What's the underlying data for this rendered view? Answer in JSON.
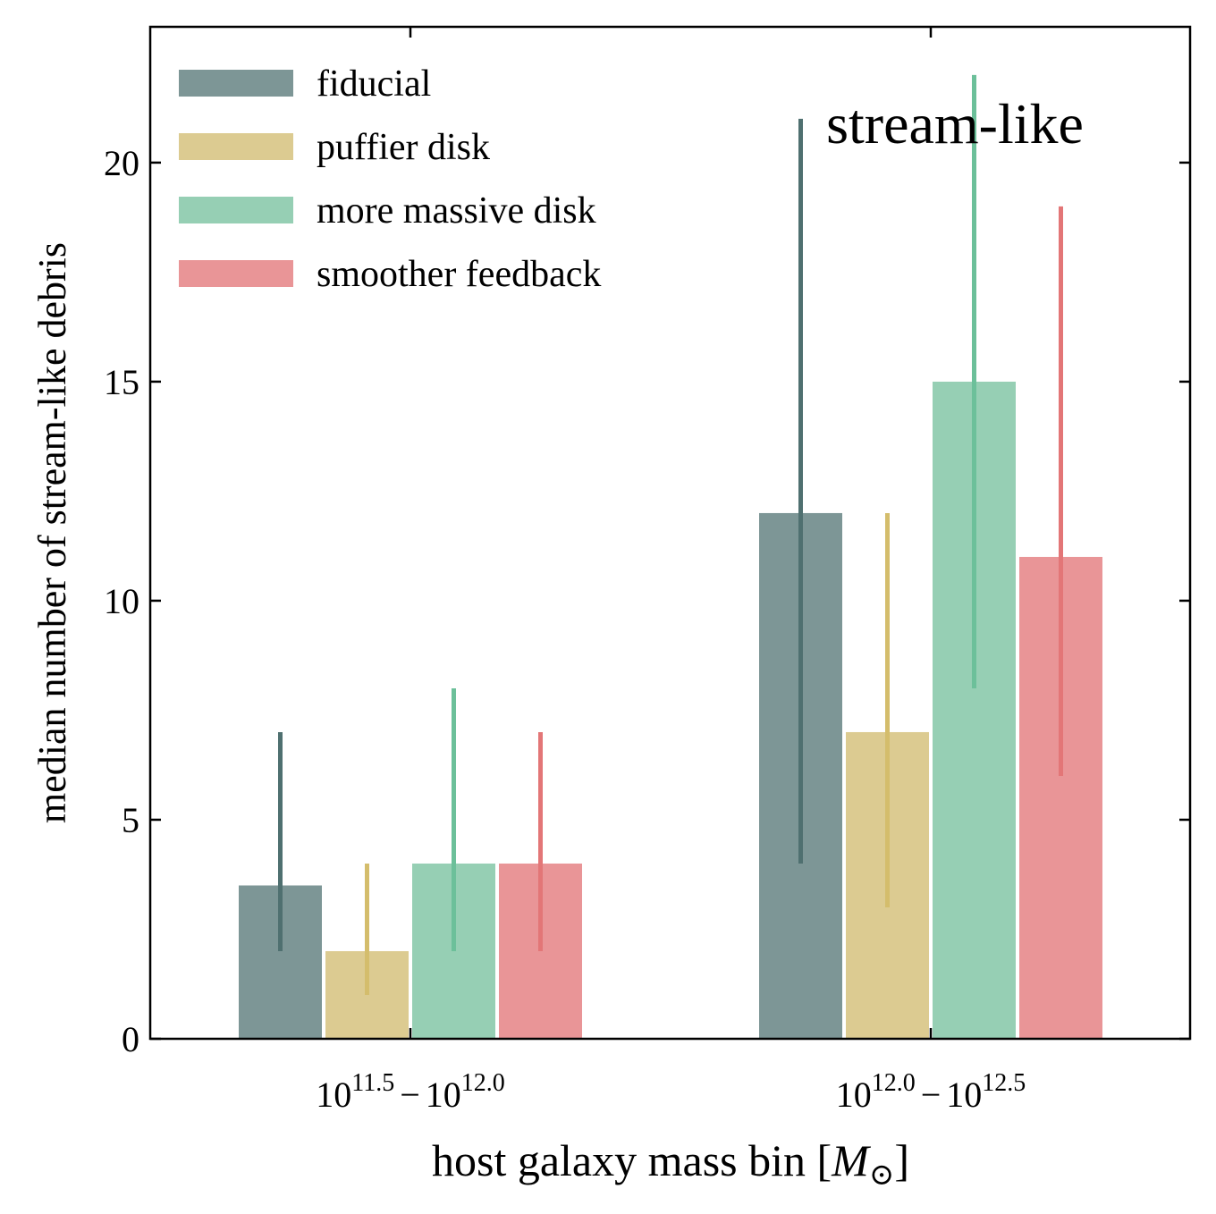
{
  "chart_data": {
    "type": "bar",
    "categories": [
      "10^{11.5}-10^{12.0}",
      "10^{12.0}-10^{12.5}"
    ],
    "category_labels": [
      {
        "base1": "10",
        "exp1": "11.5",
        "sep": "−",
        "base2": "10",
        "exp2": "12.0"
      },
      {
        "base1": "10",
        "exp1": "12.0",
        "sep": "−",
        "base2": "10",
        "exp2": "12.5"
      }
    ],
    "series": [
      {
        "name": "fiducial",
        "values": [
          3.5,
          12
        ],
        "err_low": [
          2,
          4
        ],
        "err_high": [
          7,
          21
        ],
        "bar_color": "#7d9696",
        "err_color": "#4f7070"
      },
      {
        "name": "puffier disk",
        "values": [
          2,
          7
        ],
        "err_low": [
          1,
          3
        ],
        "err_high": [
          4,
          12
        ],
        "bar_color": "#dccb91",
        "err_color": "#d4bd6c"
      },
      {
        "name": "more massive disk",
        "values": [
          4,
          15
        ],
        "err_low": [
          2,
          8
        ],
        "err_high": [
          8,
          22
        ],
        "bar_color": "#96cfb4",
        "err_color": "#6cc09a"
      },
      {
        "name": "smoother feedback",
        "values": [
          4,
          11
        ],
        "err_low": [
          2,
          6
        ],
        "err_high": [
          7,
          19
        ],
        "bar_color": "#e99597",
        "err_color": "#e37677"
      }
    ],
    "annotation": "stream-like",
    "xlabel": "host galaxy mass bin [M⊙]",
    "xlabel_text": "host galaxy mass bin [",
    "xlabel_unit": "M",
    "xlabel_sub": "⊙",
    "xlabel_close": "]",
    "ylabel": "median number of stream-like debris",
    "ylim": [
      0,
      23.1
    ],
    "yticks": [
      0,
      5,
      10,
      15,
      20
    ],
    "legend_position": "top-left",
    "grid": false
  }
}
